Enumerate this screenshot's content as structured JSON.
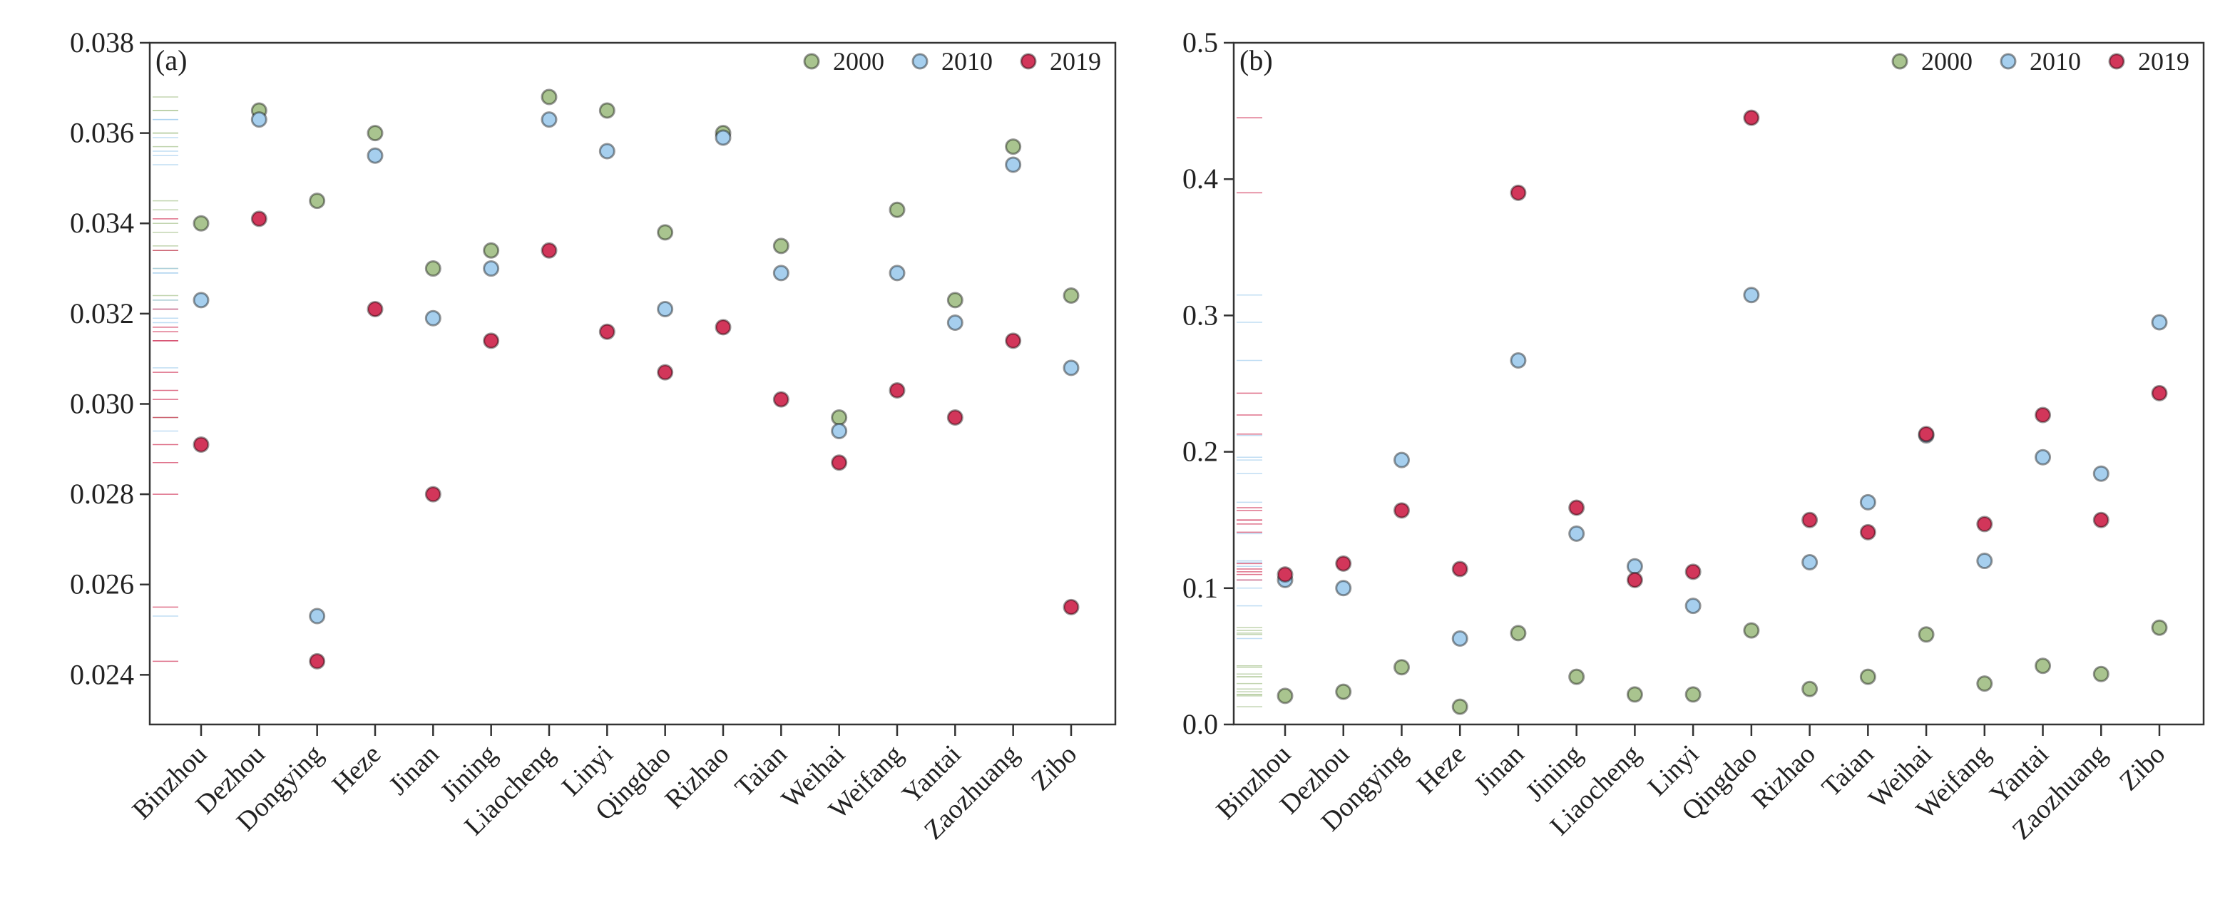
{
  "chart_data": [
    {
      "type": "scatter",
      "label": "(a)",
      "categories": [
        "Binzhou",
        "Dezhou",
        "Dongying",
        "Heze",
        "Jinan",
        "Jining",
        "Liaocheng",
        "Linyi",
        "Qingdao",
        "Rizhao",
        "Taian",
        "Weihai",
        "Weifang",
        "Yantai",
        "Zaozhuang",
        "Zibo"
      ],
      "ylim": [
        0.0229,
        0.038
      ],
      "yticks": [
        0.024,
        0.026,
        0.028,
        {
          "value": 0.03,
          "label": "0.030"
        },
        0.032,
        0.034,
        0.036,
        0.038
      ],
      "legend": "top-right",
      "series": [
        {
          "name": "2000",
          "color": "#a9c48f",
          "values": [
            0.034,
            0.0365,
            0.0345,
            0.036,
            0.033,
            0.0334,
            0.0368,
            0.0365,
            0.0338,
            0.036,
            0.0335,
            0.0297,
            0.0343,
            0.0323,
            0.0357,
            0.0324
          ]
        },
        {
          "name": "2010",
          "color": "#a6cfee",
          "values": [
            0.0323,
            0.0363,
            0.0253,
            0.0355,
            0.0319,
            0.033,
            0.0363,
            0.0356,
            0.0321,
            0.0359,
            0.0329,
            0.0294,
            0.0329,
            0.0318,
            0.0353,
            0.0308
          ]
        },
        {
          "name": "2019",
          "color": "#d2365a",
          "values": [
            0.0291,
            0.0341,
            0.0243,
            0.0321,
            0.028,
            0.0314,
            0.0334,
            0.0316,
            0.0307,
            0.0317,
            0.0301,
            0.0287,
            0.0303,
            0.0297,
            0.0314,
            0.0255
          ]
        }
      ]
    },
    {
      "type": "scatter",
      "label": "(b)",
      "categories": [
        "Binzhou",
        "Dezhou",
        "Dongying",
        "Heze",
        "Jinan",
        "Jining",
        "Liaocheng",
        "Linyi",
        "Qingdao",
        "Rizhao",
        "Taian",
        "Weihai",
        "Weifang",
        "Yantai",
        "Zaozhuang",
        "Zibo"
      ],
      "ylim": [
        0,
        0.5
      ],
      "yticks": [
        {
          "value": 0,
          "label": "0.0"
        },
        0.1,
        0.2,
        0.3,
        0.4,
        0.5
      ],
      "legend": "top-right",
      "series": [
        {
          "name": "2000",
          "color": "#a9c48f",
          "values": [
            0.021,
            0.024,
            0.042,
            0.013,
            0.067,
            0.035,
            0.022,
            0.022,
            0.069,
            0.026,
            0.035,
            0.066,
            0.03,
            0.043,
            0.037,
            0.071
          ]
        },
        {
          "name": "2010",
          "color": "#a6cfee",
          "values": [
            0.106,
            0.1,
            0.194,
            0.063,
            0.267,
            0.14,
            0.116,
            0.087,
            0.315,
            0.119,
            0.163,
            0.212,
            0.12,
            0.196,
            0.184,
            0.295
          ]
        },
        {
          "name": "2019",
          "color": "#d2365a",
          "values": [
            0.11,
            0.118,
            0.157,
            0.114,
            0.39,
            0.159,
            0.106,
            0.112,
            0.445,
            0.15,
            0.141,
            0.213,
            0.147,
            0.227,
            0.15,
            0.243
          ]
        }
      ]
    }
  ]
}
